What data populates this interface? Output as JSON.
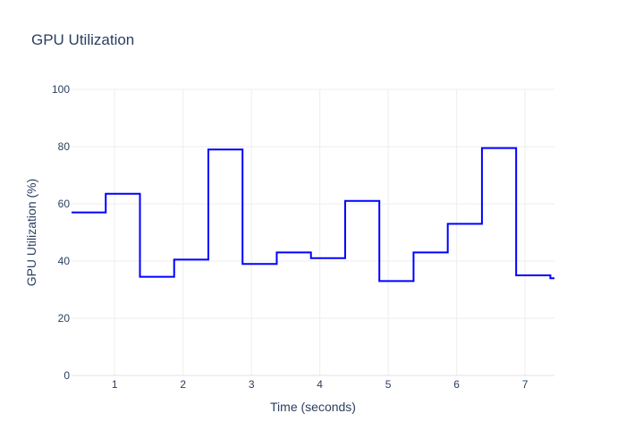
{
  "chart_data": {
    "type": "line",
    "line_shape": "step-after",
    "title": "GPU Utilization",
    "xlabel": "Time (seconds)",
    "ylabel": "GPU Utilization (%)",
    "xlim": [
      0.37,
      7.43
    ],
    "ylim": [
      0,
      100
    ],
    "x_ticks": [
      1,
      2,
      3,
      4,
      5,
      6,
      7
    ],
    "y_ticks": [
      0,
      20,
      40,
      60,
      80,
      100
    ],
    "grid": true,
    "legend": "none",
    "series": [
      {
        "color": "#0000ff",
        "x": [
          0.37,
          0.87,
          1.37,
          1.87,
          2.37,
          2.87,
          3.37,
          3.87,
          4.37,
          4.87,
          5.37,
          5.87,
          6.37,
          6.87,
          7.37,
          7.43
        ],
        "y": [
          57,
          63.5,
          34.5,
          40.5,
          79,
          39,
          43,
          41,
          61,
          33,
          43,
          53,
          79.5,
          35,
          34,
          34
        ]
      }
    ]
  }
}
